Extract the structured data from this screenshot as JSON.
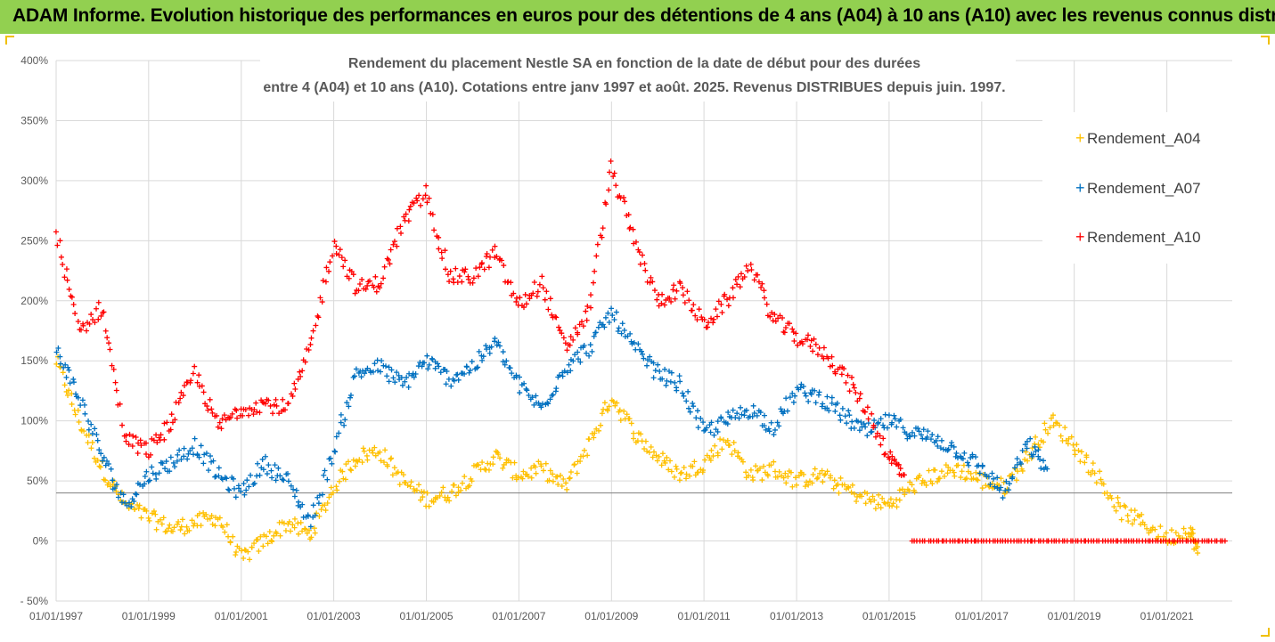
{
  "banner": {
    "title": "ADAM Informe. Evolution historique des performances en euros pour des détentions de 4 ans (A04) à 10 ans (A10) avec les revenus connus distribués"
  },
  "colors": {
    "banner_bg": "#92d050",
    "A04": "#ffc000",
    "A07": "#0070c0",
    "A10": "#ff0000",
    "grid": "#d9d9d9",
    "corner_accent": "#f0c000"
  },
  "chart_data": {
    "type": "scatter",
    "title_line1": "Rendement du placement Nestle SA en fonction de la date de début pour des durées",
    "title_line2": "entre 4 (A04) et 10 ans (A10). Cotations entre janv 1997 et août. 2025. Revenus DISTRIBUES depuis juin. 1997.",
    "marker": "+",
    "x_axis": {
      "type": "date",
      "range": [
        "1997-01-01",
        "2022-06-01"
      ],
      "tick_labels": [
        "01/01/1997",
        "01/01/1999",
        "01/01/2001",
        "01/01/2003",
        "01/01/2005",
        "01/01/2007",
        "01/01/2009",
        "01/01/2011",
        "01/01/2013",
        "01/01/2015",
        "01/01/2017",
        "01/01/2019",
        "01/01/2021"
      ],
      "tick_values": [
        "1997-01-01",
        "1999-01-01",
        "2001-01-01",
        "2003-01-01",
        "2005-01-01",
        "2007-01-01",
        "2009-01-01",
        "2011-01-01",
        "2013-01-01",
        "2015-01-01",
        "2017-01-01",
        "2019-01-01",
        "2021-01-01"
      ]
    },
    "y_axis": {
      "range": [
        -50,
        400
      ],
      "unit": "%",
      "tick_labels": [
        "400%",
        "350%",
        "300%",
        "250%",
        "200%",
        "150%",
        "100%",
        "50%",
        "0%",
        "- 50%"
      ],
      "tick_values": [
        400,
        350,
        300,
        250,
        200,
        150,
        100,
        50,
        0,
        -50
      ],
      "reference_line": 40
    },
    "grid": "vertical and horizontal",
    "legend": {
      "position": "right",
      "entries": [
        "Rendement_A04",
        "Rendement_A07",
        "Rendement_A10"
      ]
    },
    "series": [
      {
        "name": "Rendement_A04",
        "color": "#ffc000",
        "x": [
          "1997-01-01",
          "1997-07-01",
          "1998-01-01",
          "1998-07-01",
          "1999-01-01",
          "1999-07-01",
          "2000-01-01",
          "2000-07-01",
          "2001-01-01",
          "2001-07-01",
          "2002-01-01",
          "2002-07-01",
          "2003-01-01",
          "2003-07-01",
          "2004-01-01",
          "2004-07-01",
          "2005-01-01",
          "2005-07-01",
          "2006-01-01",
          "2006-07-01",
          "2007-01-01",
          "2007-07-01",
          "2008-01-01",
          "2008-07-01",
          "2009-01-01",
          "2009-07-01",
          "2010-01-01",
          "2010-07-01",
          "2011-01-01",
          "2011-07-01",
          "2012-01-01",
          "2012-07-01",
          "2013-01-01",
          "2013-07-01",
          "2014-01-01",
          "2014-07-01",
          "2015-01-01",
          "2015-07-01",
          "2016-01-01",
          "2016-07-01",
          "2017-01-01",
          "2017-07-01",
          "2018-01-01",
          "2018-07-01",
          "2019-01-01",
          "2019-07-01",
          "2020-01-01",
          "2020-07-01",
          "2021-01-01",
          "2021-07-01",
          "2021-09-01"
        ],
        "y": [
          150,
          100,
          60,
          30,
          20,
          10,
          15,
          20,
          -15,
          0,
          15,
          5,
          45,
          70,
          75,
          50,
          35,
          40,
          55,
          70,
          55,
          60,
          45,
          80,
          120,
          90,
          70,
          55,
          65,
          85,
          55,
          60,
          50,
          55,
          45,
          35,
          30,
          45,
          55,
          60,
          50,
          45,
          70,
          100,
          80,
          55,
          25,
          15,
          2,
          10,
          -10
        ]
      },
      {
        "name": "Rendement_A07",
        "color": "#0070c0",
        "x": [
          "1997-01-01",
          "1997-07-01",
          "1998-01-01",
          "1998-07-01",
          "1999-01-01",
          "1999-07-01",
          "2000-01-01",
          "2000-07-01",
          "2001-01-01",
          "2001-07-01",
          "2002-01-01",
          "2002-07-01",
          "2003-01-01",
          "2003-07-01",
          "2004-01-01",
          "2004-07-01",
          "2005-01-01",
          "2005-07-01",
          "2006-01-01",
          "2006-07-01",
          "2007-01-01",
          "2007-07-01",
          "2008-01-01",
          "2008-07-01",
          "2009-01-01",
          "2009-07-01",
          "2010-01-01",
          "2010-07-01",
          "2011-01-01",
          "2011-07-01",
          "2012-01-01",
          "2012-07-01",
          "2013-01-01",
          "2013-07-01",
          "2014-01-01",
          "2014-07-01",
          "2015-01-01",
          "2015-07-01",
          "2016-01-01",
          "2016-07-01",
          "2017-01-01",
          "2017-07-01",
          "2018-01-01",
          "2018-06-01"
        ],
        "y": [
          160,
          120,
          70,
          30,
          55,
          65,
          80,
          55,
          40,
          65,
          50,
          15,
          75,
          140,
          145,
          130,
          150,
          135,
          145,
          165,
          130,
          110,
          145,
          160,
          190,
          160,
          140,
          130,
          90,
          100,
          110,
          95,
          125,
          120,
          105,
          90,
          100,
          90,
          85,
          75,
          60,
          40,
          80,
          60
        ]
      },
      {
        "name": "Rendement_A10",
        "color": "#ff0000",
        "x": [
          "1997-01-01",
          "1997-07-01",
          "1998-01-01",
          "1998-07-01",
          "1999-01-01",
          "1999-07-01",
          "2000-01-01",
          "2000-07-01",
          "2001-01-01",
          "2001-07-01",
          "2002-01-01",
          "2002-07-01",
          "2003-01-01",
          "2003-07-01",
          "2004-01-01",
          "2004-07-01",
          "2005-01-01",
          "2005-07-01",
          "2006-01-01",
          "2006-07-01",
          "2007-01-01",
          "2007-07-01",
          "2008-01-01",
          "2008-07-01",
          "2009-01-01",
          "2009-07-01",
          "2010-01-01",
          "2010-07-01",
          "2011-01-01",
          "2011-07-01",
          "2012-01-01",
          "2012-07-01",
          "2013-01-01",
          "2013-07-01",
          "2014-01-01",
          "2014-07-01",
          "2015-01-01",
          "2015-05-01"
        ],
        "y": [
          255,
          175,
          195,
          85,
          75,
          100,
          140,
          95,
          110,
          115,
          110,
          160,
          250,
          210,
          215,
          265,
          290,
          220,
          220,
          240,
          195,
          215,
          160,
          190,
          310,
          250,
          200,
          210,
          180,
          200,
          230,
          185,
          170,
          160,
          140,
          110,
          70,
          55
        ]
      },
      {
        "name": "Rendement_A10 (zero band)",
        "color": "#ff0000",
        "x": [
          "2015-07-01",
          "2022-05-01"
        ],
        "y": [
          0,
          0
        ],
        "note": "dense markers along 0% after mid-2015"
      }
    ]
  }
}
